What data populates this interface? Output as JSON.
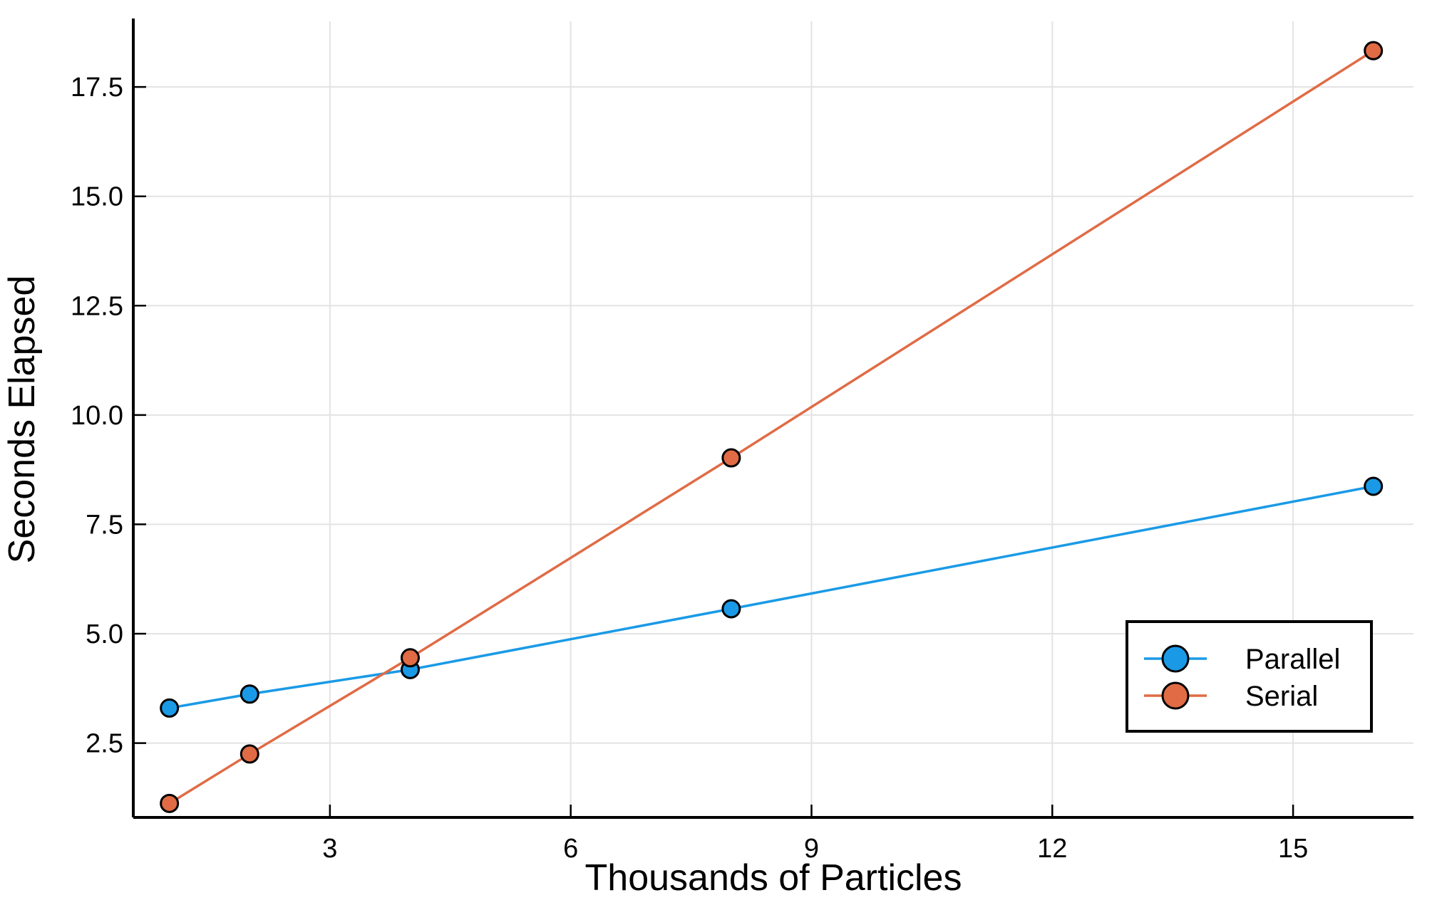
{
  "chart_data": {
    "type": "line",
    "title": "",
    "xlabel": "Thousands of Particles",
    "ylabel": "Seconds Elapsed",
    "xlim": [
      0.55,
      16.5
    ],
    "ylim": [
      0.8,
      19.0
    ],
    "xticks": [
      3,
      6,
      9,
      12,
      15
    ],
    "xtick_labels": [
      "3",
      "6",
      "9",
      "12",
      "15"
    ],
    "yticks": [
      2.5,
      5.0,
      7.5,
      10.0,
      12.5,
      15.0,
      17.5
    ],
    "ytick_labels": [
      "2.5",
      "5.0",
      "7.5",
      "10.0",
      "12.5",
      "15.0",
      "17.5"
    ],
    "grid": true,
    "legend_position": "bottom-right",
    "series": [
      {
        "name": "Parallel",
        "color": "#1a9ae6",
        "marker": "circle",
        "x": [
          1,
          2,
          4,
          8,
          16
        ],
        "y": [
          3.3,
          3.62,
          4.18,
          5.57,
          8.37
        ]
      },
      {
        "name": "Serial",
        "color": "#e06b45",
        "marker": "circle",
        "x": [
          1,
          2,
          4,
          8,
          16
        ],
        "y": [
          1.12,
          2.25,
          4.45,
          9.02,
          18.33
        ]
      }
    ]
  },
  "colors": {
    "parallel": "#1a9ae6",
    "serial": "#e06b45",
    "grid": "#e3e3e3",
    "axis": "#000000"
  }
}
